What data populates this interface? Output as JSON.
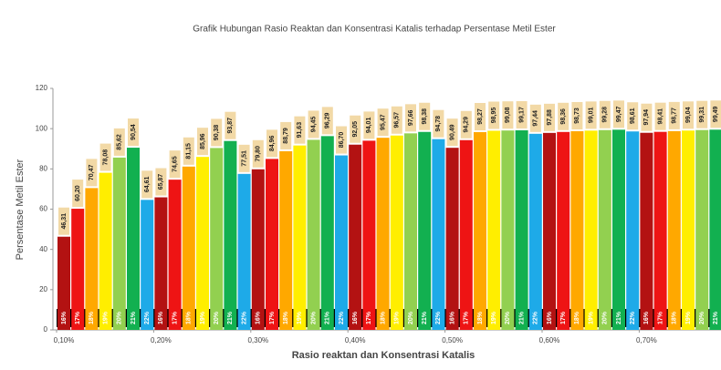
{
  "chart_data": {
    "type": "bar",
    "title": "Grafik Hubungan Rasio Reaktan dan Konsentrasi Katalis terhadap Persentase Metil Ester",
    "x_label": "Rasio reaktan dan Konsentrasi Katalis",
    "y_label": "Persentase Metil Ester",
    "categories": [
      "0,10%",
      "0,20%",
      "0,30%",
      "0,40%",
      "0,50%",
      "0,60%",
      "0,70%"
    ],
    "series": [
      {
        "name": "16%",
        "color": "#b31212",
        "values": [
          46.31,
          65.87,
          79.8,
          92.05,
          90.49,
          97.88,
          97.94
        ],
        "value_labels": [
          "46,31",
          "65,87",
          "79,80",
          "92,05",
          "90,49",
          "97,88",
          "97,94"
        ]
      },
      {
        "name": "17%",
        "color": "#ee1414",
        "values": [
          60.2,
          74.65,
          84.96,
          94.01,
          94.29,
          98.36,
          98.41
        ],
        "value_labels": [
          "60,20",
          "74,65",
          "84,96",
          "94,01",
          "94,29",
          "98,36",
          "98,41"
        ]
      },
      {
        "name": "18%",
        "color": "#ffa800",
        "values": [
          70.47,
          81.15,
          88.79,
          95.47,
          98.27,
          98.73,
          98.77
        ],
        "value_labels": [
          "70,47",
          "81,15",
          "88,79",
          "95,47",
          "98,27",
          "98,73",
          "98,77"
        ]
      },
      {
        "name": "19%",
        "color": "#ffee00",
        "values": [
          78.08,
          85.96,
          91.63,
          96.57,
          98.95,
          99.01,
          99.04
        ],
        "value_labels": [
          "78,08",
          "85,96",
          "91,63",
          "96,57",
          "98,95",
          "99,01",
          "99,04"
        ]
      },
      {
        "name": "20%",
        "color": "#92d050",
        "values": [
          85.62,
          90.38,
          94.45,
          97.66,
          99.08,
          99.28,
          99.31
        ],
        "value_labels": [
          "85,62",
          "90,38",
          "94,45",
          "97,66",
          "99,08",
          "99,28",
          "99,31"
        ]
      },
      {
        "name": "21%",
        "color": "#12b050",
        "values": [
          90.54,
          93.87,
          96.29,
          98.38,
          99.17,
          99.47,
          99.49
        ],
        "value_labels": [
          "90,54",
          "93,87",
          "96,29",
          "98,38",
          "99,17",
          "99,47",
          "99,49"
        ]
      },
      {
        "name": "22%",
        "color": "#1eaae8",
        "values": [
          64.61,
          77.51,
          86.7,
          94.78,
          97.44,
          98.61,
          98.66
        ],
        "value_labels": [
          "64,61",
          "77,51",
          "86,70",
          "94,78",
          "97,44",
          "98,61",
          "98,66"
        ]
      }
    ],
    "ylim": [
      0,
      120
    ],
    "yticks": [
      0,
      20,
      40,
      60,
      80,
      100,
      120
    ],
    "grid": false
  }
}
